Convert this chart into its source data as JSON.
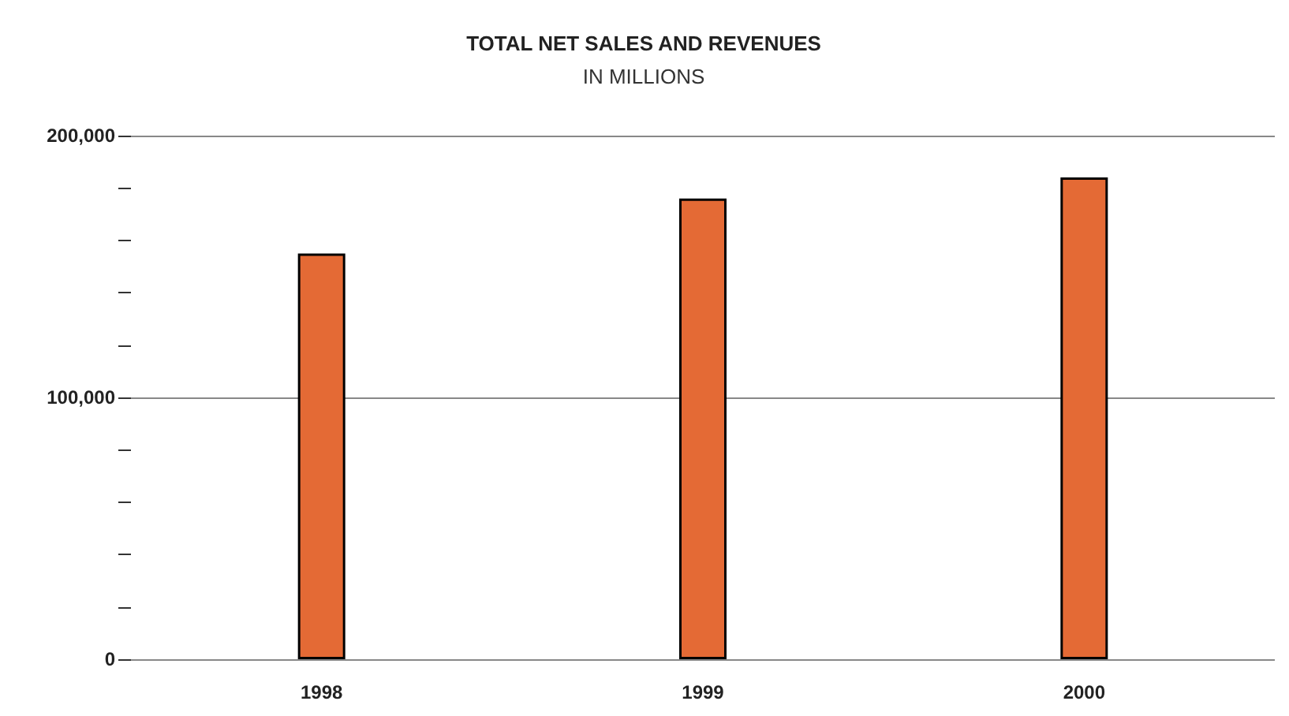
{
  "chart_data": {
    "type": "bar",
    "title": "TOTAL NET SALES AND REVENUES",
    "subtitle": "IN MILLIONS",
    "categories": [
      "1998",
      "1999",
      "2000"
    ],
    "values": [
      155000,
      176000,
      184000
    ],
    "color": "#e46a35",
    "ylim": [
      0,
      200000
    ],
    "yticks": [
      {
        "value": 0,
        "label": "0"
      },
      {
        "value": 20000,
        "label": null
      },
      {
        "value": 40000,
        "label": null
      },
      {
        "value": 60000,
        "label": null
      },
      {
        "value": 80000,
        "label": null
      },
      {
        "value": 100000,
        "label": "100,000"
      },
      {
        "value": 120000,
        "label": null
      },
      {
        "value": 140000,
        "label": null
      },
      {
        "value": 160000,
        "label": null
      },
      {
        "value": 180000,
        "label": null
      },
      {
        "value": 200000,
        "label": "200,000"
      }
    ],
    "grid": "y"
  }
}
